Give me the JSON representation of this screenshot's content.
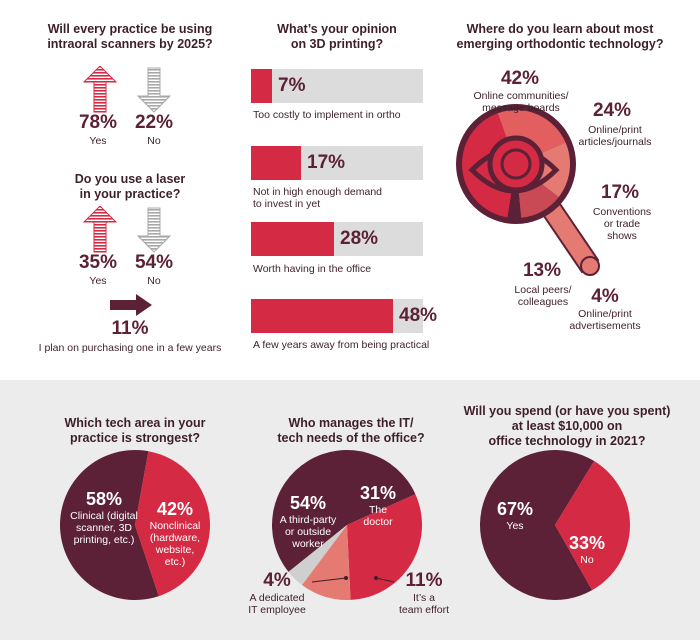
{
  "colors": {
    "dark": "#5c2136",
    "red": "#d42a44",
    "salmon": "#e57a72",
    "gray": "#cfcfcf",
    "lightgray": "#dcdcdc",
    "panel": "#ececec"
  },
  "scanners": {
    "title": "Will every practice be using\nintraoral scanners by 2025?",
    "yes_pct": "78%",
    "yes_label": "Yes",
    "no_pct": "22%",
    "no_label": "No"
  },
  "laser": {
    "title": "Do you use a laser\nin your practice?",
    "yes_pct": "35%",
    "yes_label": "Yes",
    "no_pct": "54%",
    "no_label": "No",
    "plan_pct": "11%",
    "plan_label": "I plan on purchasing one in a few years"
  },
  "printing": {
    "title": "What’s your opinion\non 3D printing?",
    "items": [
      {
        "pct": "7%",
        "label": "Too costly to implement in ortho"
      },
      {
        "pct": "17%",
        "label": "Not in high enough demand\nto invest in yet"
      },
      {
        "pct": "28%",
        "label": "Worth having in the office"
      },
      {
        "pct": "48%",
        "label": "A few years away from being practical"
      }
    ]
  },
  "learn": {
    "title": "Where do you learn about most\nemerging orthodontic technology?",
    "items": [
      {
        "pct": "42%",
        "label": "Online communities/\nmessage boards"
      },
      {
        "pct": "24%",
        "label": "Online/print\narticles/journals"
      },
      {
        "pct": "17%",
        "label": "Conventions\nor trade\nshows"
      },
      {
        "pct": "13%",
        "label": "Local peers/\ncolleagues"
      },
      {
        "pct": "4%",
        "label": "Online/print\nadvertisements"
      }
    ]
  },
  "strongest": {
    "title": "Which tech area in your\npractice is strongest?",
    "slices": [
      {
        "pct": "58%",
        "label": "Clinical (digital\nscanner, 3D\nprinting, etc.)"
      },
      {
        "pct": "42%",
        "label": "Nonclinical\n(hardware,\nwebsite,\netc.)"
      }
    ]
  },
  "manages": {
    "title": "Who manages the IT/\ntech needs of the office?",
    "slices": [
      {
        "pct": "54%",
        "label": "A third-party\nor outside\nworker"
      },
      {
        "pct": "31%",
        "label": "The\ndoctor"
      },
      {
        "pct": "11%",
        "label": "It’s a\nteam effort"
      },
      {
        "pct": "4%",
        "label": "A dedicated\nIT employee"
      }
    ]
  },
  "spend": {
    "title": "Will you spend (or have you spent)\nat least $10,000 on\noffice technology in 2021?",
    "slices": [
      {
        "pct": "67%",
        "label": "Yes"
      },
      {
        "pct": "33%",
        "label": "No"
      }
    ]
  },
  "chart_data": [
    {
      "type": "bar",
      "title": "Will every practice be using intraoral scanners by 2025?",
      "categories": [
        "Yes",
        "No"
      ],
      "values": [
        78,
        22
      ]
    },
    {
      "type": "bar",
      "title": "Do you use a laser in your practice?",
      "categories": [
        "Yes",
        "No",
        "I plan on purchasing one in a few years"
      ],
      "values": [
        35,
        54,
        11
      ]
    },
    {
      "type": "bar",
      "title": "What’s your opinion on 3D printing?",
      "categories": [
        "Too costly to implement in ortho",
        "Not in high enough demand to invest in yet",
        "Worth having in the office",
        "A few years away from being practical"
      ],
      "values": [
        7,
        17,
        28,
        48
      ],
      "ylim": [
        0,
        100
      ]
    },
    {
      "type": "pie",
      "title": "Where do you learn about most emerging orthodontic technology?",
      "categories": [
        "Online communities/message boards",
        "Online/print articles/journals",
        "Conventions or trade shows",
        "Local peers/colleagues",
        "Online/print advertisements"
      ],
      "values": [
        42,
        24,
        17,
        13,
        4
      ]
    },
    {
      "type": "pie",
      "title": "Which tech area in your practice is strongest?",
      "categories": [
        "Clinical (digital scanner, 3D printing, etc.)",
        "Nonclinical (hardware, website, etc.)"
      ],
      "values": [
        58,
        42
      ]
    },
    {
      "type": "pie",
      "title": "Who manages the IT/tech needs of the office?",
      "categories": [
        "A third-party or outside worker",
        "The doctor",
        "It’s a team effort",
        "A dedicated IT employee"
      ],
      "values": [
        54,
        31,
        11,
        4
      ]
    },
    {
      "type": "pie",
      "title": "Will you spend (or have you spent) at least $10,000 on office technology in 2021?",
      "categories": [
        "Yes",
        "No"
      ],
      "values": [
        67,
        33
      ]
    }
  ]
}
